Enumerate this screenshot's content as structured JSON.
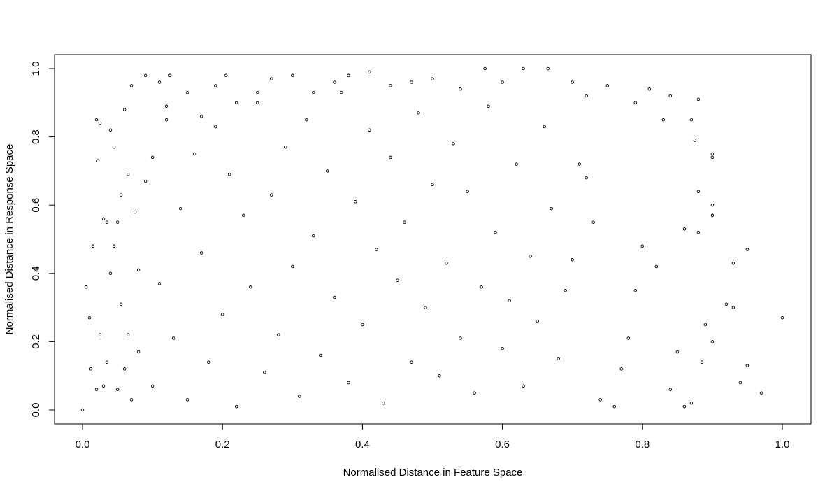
{
  "chart_data": {
    "type": "scatter",
    "title": "",
    "xlabel": "Normalised Distance in Feature Space",
    "ylabel": "Normalised Distance in Response Space",
    "xlim": [
      0.0,
      1.0
    ],
    "ylim": [
      0.0,
      1.0
    ],
    "x_ticks": [
      "0.0",
      "0.2",
      "0.4",
      "0.6",
      "0.8",
      "1.0"
    ],
    "y_ticks": [
      "0.0",
      "0.2",
      "0.4",
      "0.6",
      "0.8",
      "1.0"
    ],
    "grid": false,
    "legend": "none",
    "marker": "open-circle",
    "point_color": "#000000",
    "background": "#ffffff",
    "series": [
      {
        "points": [
          [
            0.0,
            0.0
          ],
          [
            0.005,
            0.36
          ],
          [
            0.01,
            0.27
          ],
          [
            0.012,
            0.12
          ],
          [
            0.015,
            0.48
          ],
          [
            0.02,
            0.85
          ],
          [
            0.022,
            0.73
          ],
          [
            0.025,
            0.84
          ],
          [
            0.03,
            0.56
          ],
          [
            0.035,
            0.55
          ],
          [
            0.04,
            0.82
          ],
          [
            0.045,
            0.77
          ],
          [
            0.05,
            0.55
          ],
          [
            0.05,
            0.06
          ],
          [
            0.055,
            0.31
          ],
          [
            0.06,
            0.88
          ],
          [
            0.065,
            0.69
          ],
          [
            0.07,
            0.95
          ],
          [
            0.075,
            0.58
          ],
          [
            0.08,
            0.17
          ],
          [
            0.09,
            0.98
          ],
          [
            0.1,
            0.74
          ],
          [
            0.11,
            0.96
          ],
          [
            0.12,
            0.85
          ],
          [
            0.125,
            0.98
          ],
          [
            0.15,
            0.93
          ],
          [
            0.17,
            0.86
          ],
          [
            0.19,
            0.95
          ],
          [
            0.205,
            0.98
          ],
          [
            0.22,
            0.9
          ],
          [
            0.25,
            0.93
          ],
          [
            0.27,
            0.97
          ],
          [
            0.3,
            0.98
          ],
          [
            0.33,
            0.93
          ],
          [
            0.36,
            0.96
          ],
          [
            0.38,
            0.98
          ],
          [
            0.41,
            0.99
          ],
          [
            0.44,
            0.95
          ],
          [
            0.47,
            0.96
          ],
          [
            0.5,
            0.97
          ],
          [
            0.54,
            0.94
          ],
          [
            0.575,
            1.0
          ],
          [
            0.6,
            0.96
          ],
          [
            0.63,
            1.0
          ],
          [
            0.665,
            1.0
          ],
          [
            0.7,
            0.96
          ],
          [
            0.72,
            0.92
          ],
          [
            0.75,
            0.95
          ],
          [
            0.79,
            0.9
          ],
          [
            0.81,
            0.94
          ],
          [
            0.83,
            0.85
          ],
          [
            0.84,
            0.92
          ],
          [
            0.87,
            0.85
          ],
          [
            0.88,
            0.91
          ],
          [
            0.9,
            0.75
          ],
          [
            0.9,
            0.74
          ],
          [
            0.9,
            0.6
          ],
          [
            0.9,
            0.57
          ],
          [
            0.88,
            0.52
          ],
          [
            0.86,
            0.53
          ],
          [
            0.875,
            0.79
          ],
          [
            0.88,
            0.64
          ],
          [
            0.93,
            0.43
          ],
          [
            0.95,
            0.47
          ],
          [
            0.92,
            0.31
          ],
          [
            0.93,
            0.3
          ],
          [
            1.0,
            0.27
          ],
          [
            0.97,
            0.05
          ],
          [
            0.95,
            0.13
          ],
          [
            0.94,
            0.08
          ],
          [
            0.89,
            0.25
          ],
          [
            0.9,
            0.2
          ],
          [
            0.885,
            0.14
          ],
          [
            0.87,
            0.02
          ],
          [
            0.86,
            0.01
          ],
          [
            0.85,
            0.17
          ],
          [
            0.84,
            0.06
          ],
          [
            0.82,
            0.42
          ],
          [
            0.8,
            0.48
          ],
          [
            0.79,
            0.35
          ],
          [
            0.78,
            0.21
          ],
          [
            0.77,
            0.12
          ],
          [
            0.76,
            0.01
          ],
          [
            0.74,
            0.03
          ],
          [
            0.73,
            0.55
          ],
          [
            0.72,
            0.68
          ],
          [
            0.71,
            0.72
          ],
          [
            0.7,
            0.44
          ],
          [
            0.69,
            0.35
          ],
          [
            0.68,
            0.15
          ],
          [
            0.67,
            0.59
          ],
          [
            0.66,
            0.83
          ],
          [
            0.65,
            0.26
          ],
          [
            0.64,
            0.45
          ],
          [
            0.63,
            0.07
          ],
          [
            0.62,
            0.72
          ],
          [
            0.61,
            0.32
          ],
          [
            0.6,
            0.18
          ],
          [
            0.59,
            0.52
          ],
          [
            0.58,
            0.89
          ],
          [
            0.57,
            0.36
          ],
          [
            0.56,
            0.05
          ],
          [
            0.55,
            0.64
          ],
          [
            0.54,
            0.21
          ],
          [
            0.53,
            0.78
          ],
          [
            0.52,
            0.43
          ],
          [
            0.51,
            0.1
          ],
          [
            0.5,
            0.66
          ],
          [
            0.49,
            0.3
          ],
          [
            0.48,
            0.87
          ],
          [
            0.47,
            0.14
          ],
          [
            0.46,
            0.55
          ],
          [
            0.45,
            0.38
          ],
          [
            0.44,
            0.74
          ],
          [
            0.43,
            0.02
          ],
          [
            0.42,
            0.47
          ],
          [
            0.41,
            0.82
          ],
          [
            0.4,
            0.25
          ],
          [
            0.39,
            0.61
          ],
          [
            0.38,
            0.08
          ],
          [
            0.37,
            0.93
          ],
          [
            0.36,
            0.33
          ],
          [
            0.35,
            0.7
          ],
          [
            0.34,
            0.16
          ],
          [
            0.33,
            0.51
          ],
          [
            0.32,
            0.85
          ],
          [
            0.31,
            0.04
          ],
          [
            0.3,
            0.42
          ],
          [
            0.29,
            0.77
          ],
          [
            0.28,
            0.22
          ],
          [
            0.27,
            0.63
          ],
          [
            0.26,
            0.11
          ],
          [
            0.25,
            0.9
          ],
          [
            0.24,
            0.36
          ],
          [
            0.23,
            0.57
          ],
          [
            0.22,
            0.01
          ],
          [
            0.21,
            0.69
          ],
          [
            0.2,
            0.28
          ],
          [
            0.19,
            0.83
          ],
          [
            0.18,
            0.14
          ],
          [
            0.17,
            0.46
          ],
          [
            0.16,
            0.75
          ],
          [
            0.15,
            0.03
          ],
          [
            0.14,
            0.59
          ],
          [
            0.13,
            0.21
          ],
          [
            0.12,
            0.89
          ],
          [
            0.11,
            0.37
          ],
          [
            0.1,
            0.07
          ],
          [
            0.09,
            0.67
          ],
          [
            0.08,
            0.41
          ],
          [
            0.07,
            0.03
          ],
          [
            0.065,
            0.22
          ],
          [
            0.06,
            0.12
          ],
          [
            0.055,
            0.63
          ],
          [
            0.045,
            0.48
          ],
          [
            0.04,
            0.4
          ],
          [
            0.035,
            0.14
          ],
          [
            0.03,
            0.07
          ],
          [
            0.025,
            0.22
          ],
          [
            0.02,
            0.06
          ]
        ]
      }
    ]
  }
}
